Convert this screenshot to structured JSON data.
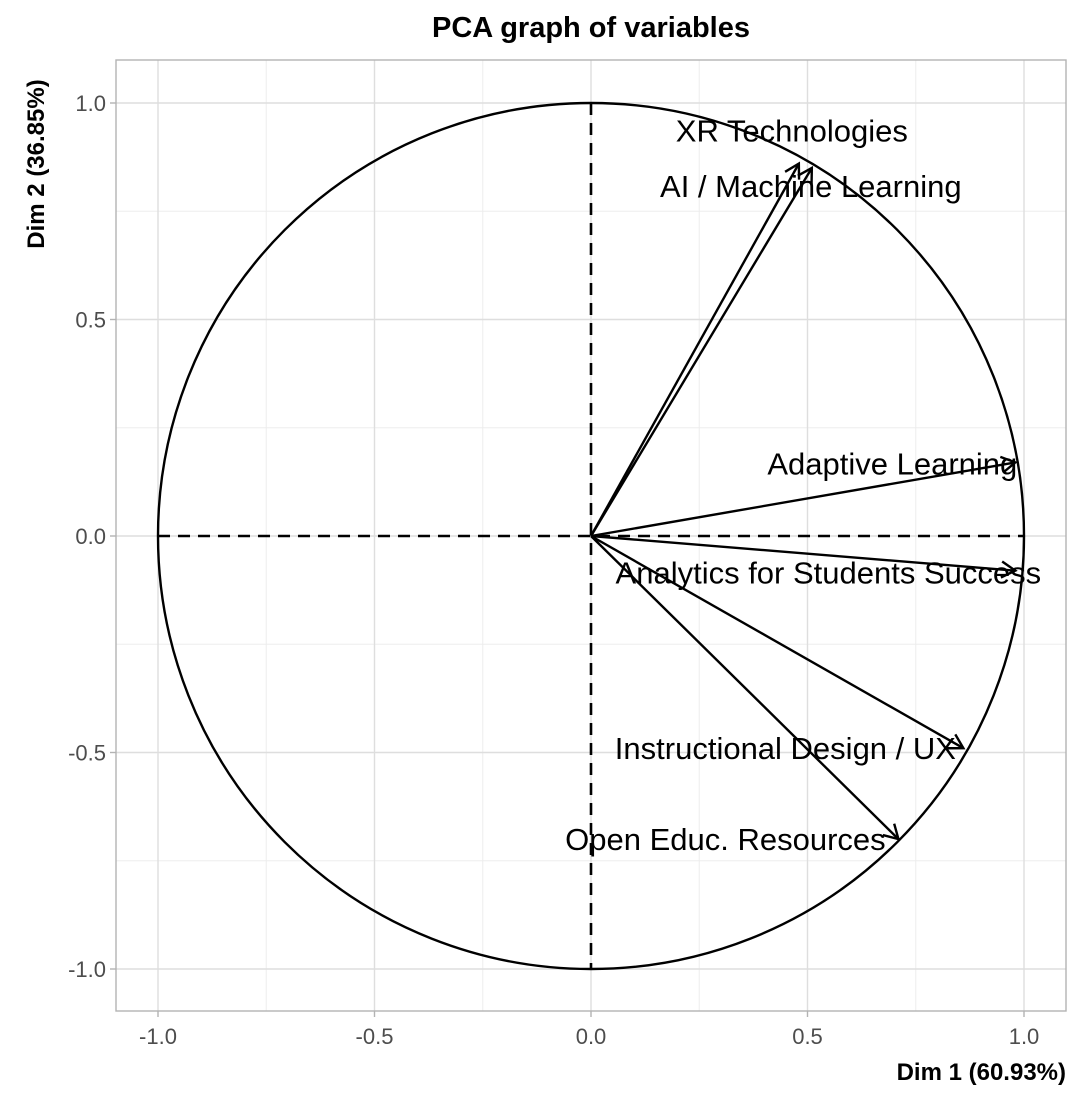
{
  "chart_data": {
    "type": "scatter",
    "title": "PCA graph of variables",
    "xlabel": "Dim 1 (60.93%)",
    "ylabel": "Dim 2 (36.85%)",
    "xlim": [
      -1.1,
      1.1
    ],
    "ylim": [
      -1.1,
      1.1
    ],
    "xticks": [
      "-1.0",
      "-0.5",
      "0.0",
      "0.5",
      "1.0"
    ],
    "yticks": [
      "-1.0",
      "-0.5",
      "0.0",
      "0.5",
      "1.0"
    ],
    "grid": true,
    "correlation_circle": true,
    "variables": [
      {
        "name": "XR Technologies",
        "x": 0.48,
        "y": 0.86
      },
      {
        "name": "AI / Machine Learning",
        "x": 0.51,
        "y": 0.85
      },
      {
        "name": "Adaptive Learning",
        "x": 0.98,
        "y": 0.17
      },
      {
        "name": "Analytics for Students Success",
        "x": 0.98,
        "y": -0.08
      },
      {
        "name": "Instructional Design / UX",
        "x": 0.86,
        "y": -0.49
      },
      {
        "name": "Open Educ. Resources",
        "x": 0.71,
        "y": -0.7
      }
    ]
  }
}
